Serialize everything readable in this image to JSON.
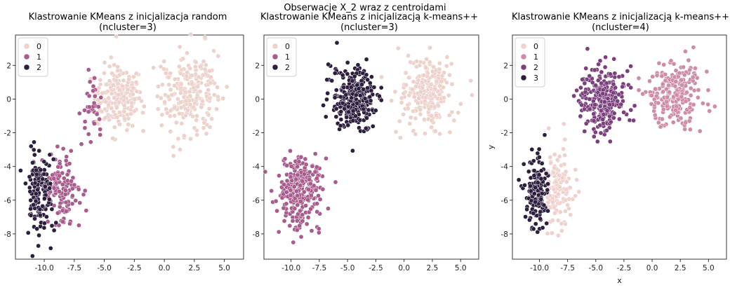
{
  "figure": {
    "title": "Obserwacje X_2 wraz z centroidami"
  },
  "chart_data": [
    {
      "type": "scatter",
      "title_line1": "Klastrowanie KMeans z inicjalizacja random",
      "title_line2": "(ncluster=3)",
      "xlabel": "",
      "ylabel": "",
      "xlim": [
        -12.4,
        6.6
      ],
      "ylim": [
        -9.5,
        3.8
      ],
      "xticks": [
        "-10.0",
        "-7.5",
        "-5.0",
        "-2.5",
        "0.0",
        "2.5",
        "5.0"
      ],
      "yticks": [
        "2",
        "0",
        "-2",
        "-4",
        "-6",
        "-8"
      ],
      "legend": {
        "position": "top-left",
        "entries": [
          "0",
          "1",
          "2"
        ]
      },
      "palette": [
        "#edd1cb",
        "#a85b8c",
        "#2d1e3e"
      ],
      "clusters": [
        {
          "label": "0",
          "color": "#edd1cb",
          "center": [
            -3.8,
            0.1
          ],
          "spread": [
            1.0,
            0.95
          ],
          "n": 200,
          "x_min": -6.3
        },
        {
          "label": "0",
          "color": "#edd1cb",
          "center": [
            2.0,
            0.3
          ],
          "spread": [
            1.2,
            1.1
          ],
          "n": 230
        },
        {
          "label": "1",
          "color": "#a85b8c",
          "center": [
            -6.0,
            -0.4
          ],
          "spread": [
            0.5,
            0.9
          ],
          "n": 35,
          "x_max": -5.0
        },
        {
          "label": "1",
          "color": "#a85b8c",
          "center": [
            -8.6,
            -5.5
          ],
          "spread": [
            0.75,
            1.0
          ],
          "n": 140
        },
        {
          "label": "2",
          "color": "#2d1e3e",
          "center": [
            -10.3,
            -5.6
          ],
          "spread": [
            0.6,
            1.1
          ],
          "n": 140,
          "x_max": -9.0
        }
      ]
    },
    {
      "type": "scatter",
      "title_line1": "Klastrowanie KMeans z inicjalizacją k-means++",
      "title_line2": "(ncluster=3)",
      "xlabel": "",
      "ylabel": "",
      "xlim": [
        -12.4,
        6.6
      ],
      "ylim": [
        -9.5,
        3.8
      ],
      "xticks": [
        "-10.0",
        "-7.5",
        "-5.0",
        "-2.5",
        "0.0",
        "2.5",
        "5.0"
      ],
      "yticks": [
        "2",
        "0",
        "-2",
        "-4",
        "-6",
        "-8"
      ],
      "legend": {
        "position": "top-left",
        "entries": [
          "0",
          "1",
          "2"
        ]
      },
      "palette": [
        "#edd1cb",
        "#a85b8c",
        "#2d1e3e"
      ],
      "clusters": [
        {
          "label": "2",
          "color": "#2d1e3e",
          "center": [
            -4.4,
            0.0
          ],
          "spread": [
            1.0,
            0.95
          ],
          "n": 260
        },
        {
          "label": "0",
          "color": "#edd1cb",
          "center": [
            2.0,
            0.3
          ],
          "spread": [
            1.2,
            1.1
          ],
          "n": 230
        },
        {
          "label": "1",
          "color": "#a85b8c",
          "center": [
            -9.3,
            -5.5
          ],
          "spread": [
            0.95,
            1.0
          ],
          "n": 280
        }
      ]
    },
    {
      "type": "scatter",
      "title_line1": "Klastrowanie KMeans z inicjalizacją k-means++",
      "title_line2": "(ncluster=4)",
      "xlabel": "x",
      "ylabel": "y",
      "xlim": [
        -12.4,
        6.6
      ],
      "ylim": [
        -9.5,
        3.8
      ],
      "xticks": [
        "-10.0",
        "-7.5",
        "-5.0",
        "-2.5",
        "0.0",
        "2.5",
        "5.0"
      ],
      "yticks": [
        "2",
        "0",
        "-2",
        "-4",
        "-6",
        "-8"
      ],
      "legend": {
        "position": "top-left",
        "entries": [
          "0",
          "1",
          "2",
          "3"
        ]
      },
      "palette": [
        "#efd2cd",
        "#cf8ca6",
        "#7a3f7c",
        "#2d1e3e"
      ],
      "clusters": [
        {
          "label": "2",
          "color": "#7a3f7c",
          "center": [
            -4.4,
            0.0
          ],
          "spread": [
            1.0,
            0.95
          ],
          "n": 260
        },
        {
          "label": "1",
          "color": "#cf8ca6",
          "center": [
            2.0,
            0.3
          ],
          "spread": [
            1.2,
            1.1
          ],
          "n": 230
        },
        {
          "label": "0",
          "color": "#efd2cd",
          "center": [
            -8.4,
            -5.3
          ],
          "spread": [
            0.65,
            1.0
          ],
          "n": 130,
          "x_min": -9.3
        },
        {
          "label": "3",
          "color": "#2d1e3e",
          "center": [
            -10.2,
            -5.6
          ],
          "spread": [
            0.55,
            1.05
          ],
          "n": 150,
          "x_max": -9.2
        }
      ]
    }
  ]
}
